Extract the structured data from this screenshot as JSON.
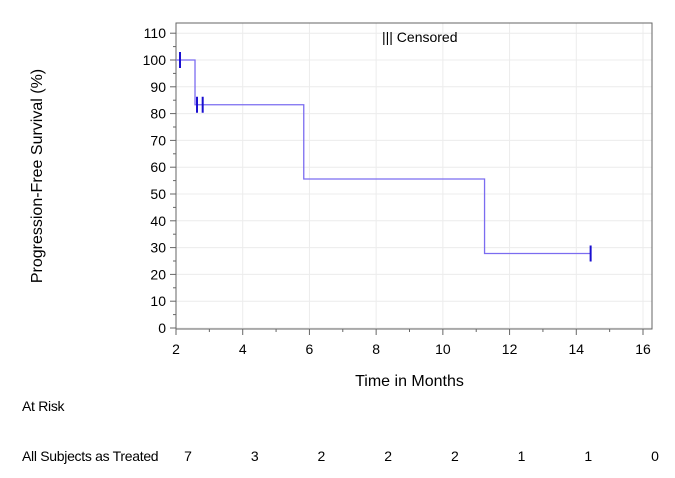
{
  "chart_data": {
    "type": "line",
    "subtype": "kaplan-meier-step",
    "xlabel": "Time in Months",
    "ylabel": "Progression-Free Survival (%)",
    "xlim": [
      2,
      16
    ],
    "ylim": [
      0,
      110
    ],
    "xticks": [
      2,
      4,
      6,
      8,
      10,
      12,
      14,
      16
    ],
    "yticks": [
      0,
      10,
      20,
      30,
      40,
      50,
      60,
      70,
      80,
      90,
      100,
      110
    ],
    "grid": true,
    "legend": {
      "label": "Censored",
      "symbol": "|||",
      "placement": "top-center"
    },
    "series_color": "#7b6cf0",
    "censor_color": "#1a0fd0",
    "steps": [
      {
        "x": 2.0,
        "y": 100
      },
      {
        "x": 2.57,
        "y": 83.3
      },
      {
        "x": 5.83,
        "y": 55.6
      },
      {
        "x": 11.25,
        "y": 27.8
      }
    ],
    "end_x": 14.43,
    "censored": [
      {
        "x": 2.12,
        "y": 100
      },
      {
        "x": 2.63,
        "y": 83.3
      },
      {
        "x": 2.8,
        "y": 83.3
      },
      {
        "x": 14.43,
        "y": 27.8
      }
    ],
    "at_risk": {
      "title": "At Risk",
      "group": "All Subjects as Treated",
      "times": [
        2,
        4,
        6,
        8,
        10,
        12,
        14,
        16
      ],
      "counts": [
        7,
        3,
        2,
        2,
        2,
        1,
        1,
        0
      ]
    }
  }
}
